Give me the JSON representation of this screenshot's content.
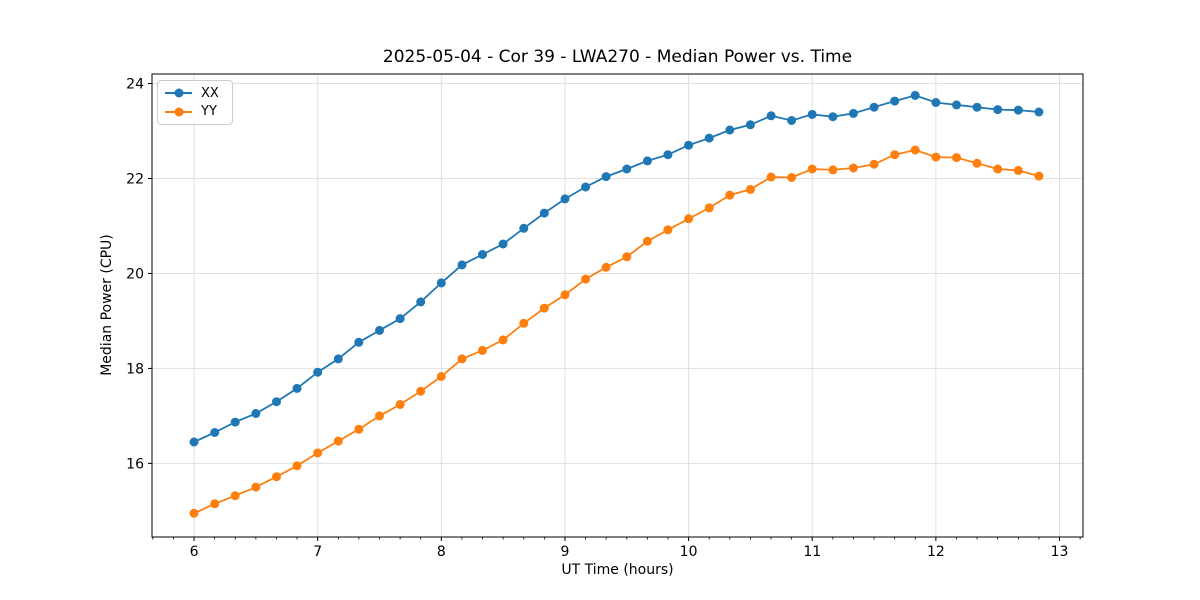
{
  "chart_data": {
    "type": "line",
    "title": "2025-05-04 - Cor 39 - LWA270 - Median Power vs. Time",
    "xlabel": "UT Time (hours)",
    "ylabel": "Median Power (CPU)",
    "xlim": [
      5.66,
      13.19
    ],
    "ylim": [
      14.45,
      24.2
    ],
    "xticks": [
      6,
      7,
      8,
      9,
      10,
      11,
      12,
      13
    ],
    "yticks": [
      16,
      18,
      20,
      22,
      24
    ],
    "grid": true,
    "legend_position": "upper-left",
    "marker": "circle",
    "x": [
      6.0,
      6.167,
      6.333,
      6.5,
      6.667,
      6.833,
      7.0,
      7.167,
      7.333,
      7.5,
      7.667,
      7.833,
      8.0,
      8.167,
      8.333,
      8.5,
      8.667,
      8.833,
      9.0,
      9.167,
      9.333,
      9.5,
      9.667,
      9.833,
      10.0,
      10.167,
      10.333,
      10.5,
      10.667,
      10.833,
      11.0,
      11.167,
      11.333,
      11.5,
      11.667,
      11.833,
      12.0,
      12.167,
      12.333,
      12.5,
      12.667,
      12.833
    ],
    "series": [
      {
        "name": "XX",
        "color": "#1f77b4",
        "values": [
          16.45,
          16.65,
          16.87,
          17.05,
          17.3,
          17.58,
          17.92,
          18.2,
          18.55,
          18.8,
          19.05,
          19.4,
          19.8,
          20.18,
          20.4,
          20.62,
          20.95,
          21.27,
          21.57,
          21.82,
          22.04,
          22.2,
          22.37,
          22.5,
          22.7,
          22.85,
          23.02,
          23.13,
          23.32,
          23.22,
          23.35,
          23.3,
          23.37,
          23.5,
          23.63,
          23.75,
          23.6,
          23.55,
          23.5,
          23.45,
          23.44,
          23.4
        ]
      },
      {
        "name": "YY",
        "color": "#ff7f0e",
        "values": [
          14.95,
          15.15,
          15.32,
          15.5,
          15.72,
          15.95,
          16.22,
          16.47,
          16.72,
          17.0,
          17.24,
          17.52,
          17.83,
          18.2,
          18.38,
          18.6,
          18.95,
          19.27,
          19.55,
          19.88,
          20.13,
          20.35,
          20.68,
          20.92,
          21.15,
          21.38,
          21.65,
          21.77,
          22.03,
          22.02,
          22.2,
          22.18,
          22.22,
          22.3,
          22.5,
          22.6,
          22.45,
          22.44,
          22.32,
          22.2,
          22.17,
          22.05
        ]
      }
    ],
    "style": {
      "grid_color": "#e0e0e0",
      "spine_color": "#000000",
      "background": "#ffffff"
    }
  }
}
